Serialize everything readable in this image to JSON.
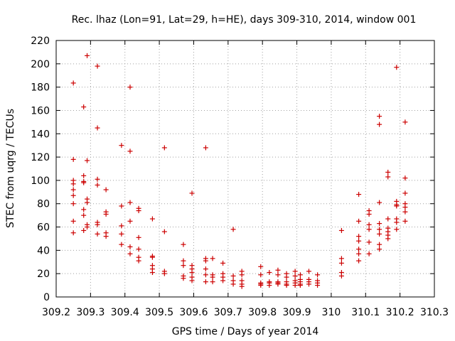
{
  "chart_data": {
    "type": "scatter",
    "title": "Rec. lhaz (Lon=91, Lat=29, h=HE), days 309-310, 2014, window 001",
    "xlabel": "GPS time / Days of year 2014",
    "ylabel": "STEC from uqrg / TECUs",
    "xlim": [
      309.2,
      310.3
    ],
    "ylim": [
      0,
      220
    ],
    "xticks": [
      309.2,
      309.3,
      309.4,
      309.5,
      309.6,
      309.7,
      309.8,
      309.9,
      310.0,
      310.1,
      310.2,
      310.3
    ],
    "xtick_labels": [
      "309.2",
      "309.3",
      "309.4",
      "309.5",
      "309.6",
      "309.7",
      "309.8",
      "309.9",
      "310",
      "310.1",
      "310.2",
      "310.3"
    ],
    "yticks": [
      0,
      20,
      40,
      60,
      80,
      100,
      120,
      140,
      160,
      180,
      200,
      220
    ],
    "ytick_labels": [
      "0",
      "20",
      "40",
      "60",
      "80",
      "100",
      "120",
      "140",
      "160",
      "180",
      "200",
      "220"
    ],
    "grid": true,
    "marker_color": "#cc0000",
    "points": [
      [
        309.25,
        183.5
      ],
      [
        309.25,
        118
      ],
      [
        309.25,
        100
      ],
      [
        309.25,
        97
      ],
      [
        309.25,
        92
      ],
      [
        309.25,
        87
      ],
      [
        309.25,
        80
      ],
      [
        309.25,
        65
      ],
      [
        309.25,
        55
      ],
      [
        309.28,
        163
      ],
      [
        309.28,
        104
      ],
      [
        309.28,
        99
      ],
      [
        309.28,
        98
      ],
      [
        309.28,
        75
      ],
      [
        309.28,
        70
      ],
      [
        309.28,
        57
      ],
      [
        309.29,
        207
      ],
      [
        309.29,
        117
      ],
      [
        309.29,
        84
      ],
      [
        309.29,
        81
      ],
      [
        309.29,
        62
      ],
      [
        309.29,
        60
      ],
      [
        309.32,
        198
      ],
      [
        309.32,
        145
      ],
      [
        309.32,
        101
      ],
      [
        309.32,
        96
      ],
      [
        309.32,
        64
      ],
      [
        309.32,
        62
      ],
      [
        309.32,
        54
      ],
      [
        309.345,
        92
      ],
      [
        309.345,
        73
      ],
      [
        309.345,
        71
      ],
      [
        309.345,
        55
      ],
      [
        309.345,
        52
      ],
      [
        309.39,
        130
      ],
      [
        309.39,
        78
      ],
      [
        309.39,
        61
      ],
      [
        309.39,
        54
      ],
      [
        309.39,
        45
      ],
      [
        309.415,
        180
      ],
      [
        309.415,
        125
      ],
      [
        309.415,
        81
      ],
      [
        309.415,
        65
      ],
      [
        309.415,
        43
      ],
      [
        309.415,
        37
      ],
      [
        309.44,
        76
      ],
      [
        309.44,
        74
      ],
      [
        309.44,
        51
      ],
      [
        309.44,
        41
      ],
      [
        309.44,
        34
      ],
      [
        309.44,
        31
      ],
      [
        309.48,
        67
      ],
      [
        309.48,
        35
      ],
      [
        309.48,
        34
      ],
      [
        309.48,
        27
      ],
      [
        309.48,
        24
      ],
      [
        309.48,
        21
      ],
      [
        309.515,
        128
      ],
      [
        309.515,
        56
      ],
      [
        309.515,
        22
      ],
      [
        309.515,
        20
      ],
      [
        309.57,
        45
      ],
      [
        309.57,
        31
      ],
      [
        309.57,
        27
      ],
      [
        309.57,
        18
      ],
      [
        309.57,
        16
      ],
      [
        309.595,
        89
      ],
      [
        309.595,
        27
      ],
      [
        309.595,
        24
      ],
      [
        309.595,
        21
      ],
      [
        309.595,
        17
      ],
      [
        309.595,
        14
      ],
      [
        309.635,
        128
      ],
      [
        309.635,
        33
      ],
      [
        309.635,
        31
      ],
      [
        309.635,
        24
      ],
      [
        309.635,
        19
      ],
      [
        309.635,
        13
      ],
      [
        309.655,
        33
      ],
      [
        309.655,
        19
      ],
      [
        309.655,
        17
      ],
      [
        309.655,
        13
      ],
      [
        309.685,
        29
      ],
      [
        309.685,
        20
      ],
      [
        309.685,
        17
      ],
      [
        309.685,
        14
      ],
      [
        309.715,
        58
      ],
      [
        309.715,
        18
      ],
      [
        309.715,
        14
      ],
      [
        309.715,
        11
      ],
      [
        309.74,
        22
      ],
      [
        309.74,
        19
      ],
      [
        309.74,
        14
      ],
      [
        309.74,
        11
      ],
      [
        309.74,
        9
      ],
      [
        309.795,
        26
      ],
      [
        309.795,
        19
      ],
      [
        309.795,
        12
      ],
      [
        309.795,
        11
      ],
      [
        309.795,
        10
      ],
      [
        309.82,
        21
      ],
      [
        309.82,
        13
      ],
      [
        309.82,
        12
      ],
      [
        309.82,
        10
      ],
      [
        309.845,
        23
      ],
      [
        309.845,
        19
      ],
      [
        309.845,
        13
      ],
      [
        309.845,
        12
      ],
      [
        309.845,
        11
      ],
      [
        309.87,
        20
      ],
      [
        309.87,
        17
      ],
      [
        309.87,
        13
      ],
      [
        309.87,
        11
      ],
      [
        309.87,
        10
      ],
      [
        309.895,
        22
      ],
      [
        309.895,
        18
      ],
      [
        309.895,
        14
      ],
      [
        309.895,
        12
      ],
      [
        309.895,
        10
      ],
      [
        309.91,
        19
      ],
      [
        309.91,
        15
      ],
      [
        309.91,
        13
      ],
      [
        309.91,
        11
      ],
      [
        309.91,
        10
      ],
      [
        309.935,
        22
      ],
      [
        309.935,
        15
      ],
      [
        309.935,
        13
      ],
      [
        309.935,
        11
      ],
      [
        309.96,
        19
      ],
      [
        309.96,
        14
      ],
      [
        309.96,
        12
      ],
      [
        309.96,
        10
      ],
      [
        310.03,
        57
      ],
      [
        310.03,
        33
      ],
      [
        310.03,
        29
      ],
      [
        310.03,
        21
      ],
      [
        310.03,
        18
      ],
      [
        310.08,
        88
      ],
      [
        310.08,
        65
      ],
      [
        310.08,
        52
      ],
      [
        310.08,
        48
      ],
      [
        310.08,
        41
      ],
      [
        310.08,
        37
      ],
      [
        310.08,
        31
      ],
      [
        310.11,
        74
      ],
      [
        310.11,
        71
      ],
      [
        310.11,
        62
      ],
      [
        310.11,
        58
      ],
      [
        310.11,
        47
      ],
      [
        310.11,
        37
      ],
      [
        310.14,
        155
      ],
      [
        310.14,
        148
      ],
      [
        310.14,
        81
      ],
      [
        310.14,
        63
      ],
      [
        310.14,
        58
      ],
      [
        310.14,
        54
      ],
      [
        310.14,
        45
      ],
      [
        310.14,
        41
      ],
      [
        310.165,
        107
      ],
      [
        310.165,
        103
      ],
      [
        310.165,
        67
      ],
      [
        310.165,
        59
      ],
      [
        310.165,
        56
      ],
      [
        310.165,
        53
      ],
      [
        310.165,
        50
      ],
      [
        310.19,
        197
      ],
      [
        310.19,
        82
      ],
      [
        310.19,
        79
      ],
      [
        310.19,
        78
      ],
      [
        310.19,
        67
      ],
      [
        310.19,
        64
      ],
      [
        310.19,
        58
      ],
      [
        310.215,
        150
      ],
      [
        310.215,
        102
      ],
      [
        310.215,
        89
      ],
      [
        310.215,
        80
      ],
      [
        310.215,
        77
      ],
      [
        310.215,
        73
      ],
      [
        310.215,
        65
      ]
    ]
  }
}
